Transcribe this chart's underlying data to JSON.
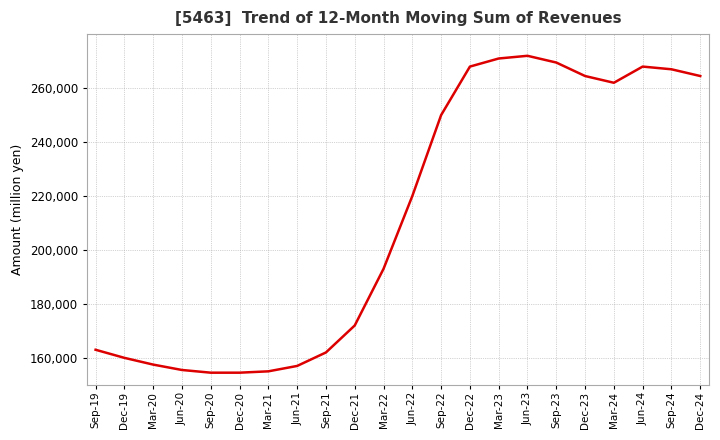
{
  "title": "[5463]  Trend of 12-Month Moving Sum of Revenues",
  "ylabel": "Amount (million yen)",
  "background_color": "#ffffff",
  "grid_color": "#aaaaaa",
  "line_color": "#dd0000",
  "ylim": [
    150000,
    280000
  ],
  "yticks": [
    160000,
    180000,
    200000,
    220000,
    240000,
    260000
  ],
  "x_labels": [
    "Sep-19",
    "Dec-19",
    "Mar-20",
    "Jun-20",
    "Sep-20",
    "Dec-20",
    "Mar-21",
    "Jun-21",
    "Sep-21",
    "Dec-21",
    "Mar-22",
    "Jun-22",
    "Sep-22",
    "Dec-22",
    "Mar-23",
    "Jun-23",
    "Sep-23",
    "Dec-23",
    "Mar-24",
    "Jun-24",
    "Sep-24",
    "Dec-24"
  ],
  "y_values": [
    163000,
    160000,
    157500,
    155500,
    154500,
    154500,
    155000,
    157000,
    162000,
    172000,
    193000,
    220000,
    250000,
    268000,
    271000,
    272000,
    269500,
    264500,
    262000,
    268000,
    267000,
    264500
  ]
}
